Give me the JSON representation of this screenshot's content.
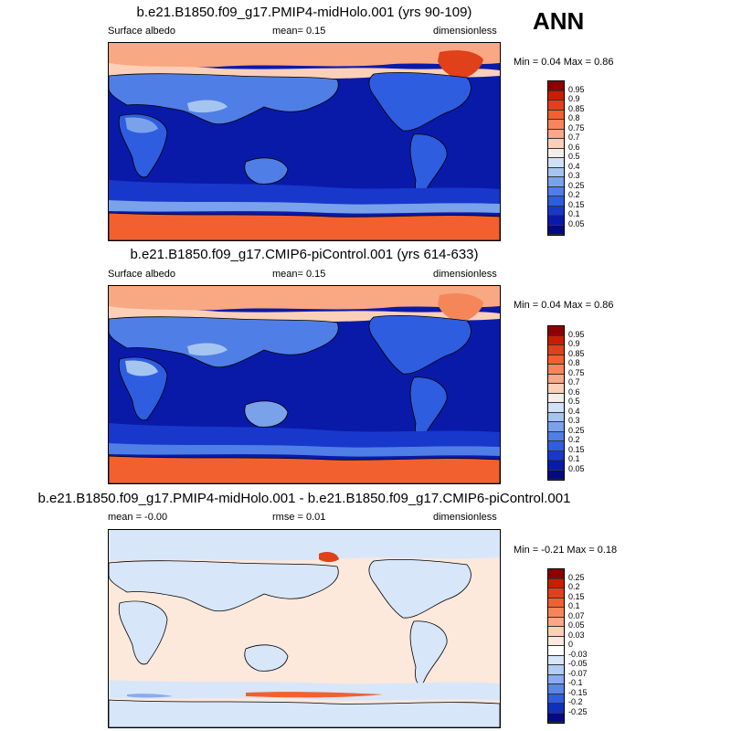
{
  "season": "ANN",
  "panels": [
    {
      "title": "b.e21.B1850.f09_g17.PMIP4-midHolo.001 (yrs 90-109)",
      "left_label": "Surface albedo",
      "center_label": "mean=   0.15",
      "right_label": "dimensionless",
      "min_label": "Min =",
      "min_value": "0.04",
      "max_label": "Max =",
      "max_value": "0.86",
      "colorbar": {
        "levels": [
          "0.95",
          "0.9",
          "0.85",
          "0.8",
          "0.75",
          "0.7",
          "0.6",
          "0.5",
          "0.4",
          "0.3",
          "0.25",
          "0.2",
          "0.15",
          "0.1",
          "0.05"
        ],
        "colors": [
          "#8c0000",
          "#c81e00",
          "#e0401a",
          "#f26030",
          "#f5865a",
          "#f8a882",
          "#fcd0b8",
          "#f3eee9",
          "#cfe0f7",
          "#a6c4f0",
          "#7aa2eb",
          "#4f7fe6",
          "#2e5de0",
          "#1838cc",
          "#0a1aa8",
          "#040a80"
        ]
      }
    },
    {
      "title": "b.e21.B1850.f09_g17.CMIP6-piControl.001 (yrs 614-633)",
      "left_label": "Surface albedo",
      "center_label": "mean=   0.15",
      "right_label": "dimensionless",
      "min_label": "Min =",
      "min_value": "0.04",
      "max_label": "Max =",
      "max_value": "0.86",
      "colorbar": {
        "levels": [
          "0.95",
          "0.9",
          "0.85",
          "0.8",
          "0.75",
          "0.7",
          "0.6",
          "0.5",
          "0.4",
          "0.3",
          "0.25",
          "0.2",
          "0.15",
          "0.1",
          "0.05"
        ],
        "colors": [
          "#8c0000",
          "#c81e00",
          "#e0401a",
          "#f26030",
          "#f5865a",
          "#f8a882",
          "#fcd0b8",
          "#f3eee9",
          "#cfe0f7",
          "#a6c4f0",
          "#7aa2eb",
          "#4f7fe6",
          "#2e5de0",
          "#1838cc",
          "#0a1aa8",
          "#040a80"
        ]
      }
    },
    {
      "title": "b.e21.B1850.f09_g17.PMIP4-midHolo.001 - b.e21.B1850.f09_g17.CMIP6-piControl.001",
      "left_label": "mean =   -0.00",
      "center_label": "rmse =   0.01",
      "right_label": "dimensionless",
      "min_label": "Min =",
      "min_value": "-0.21",
      "max_label": "Max =",
      "max_value": "0.18",
      "colorbar": {
        "levels": [
          "0.25",
          "0.2",
          "0.15",
          "0.1",
          "0.07",
          "0.05",
          "0.03",
          "0",
          "-0.03",
          "-0.05",
          "-0.07",
          "-0.1",
          "-0.15",
          "-0.2",
          "-0.25"
        ],
        "colors": [
          "#8c0000",
          "#c81e00",
          "#e0401a",
          "#f26030",
          "#f5865a",
          "#f8a882",
          "#fcd0b8",
          "#fde8dc",
          "#ffffff",
          "#d8e6fa",
          "#b4ccf4",
          "#88acee",
          "#5a86e6",
          "#2e5de0",
          "#1030b8",
          "#040a80"
        ]
      }
    }
  ]
}
